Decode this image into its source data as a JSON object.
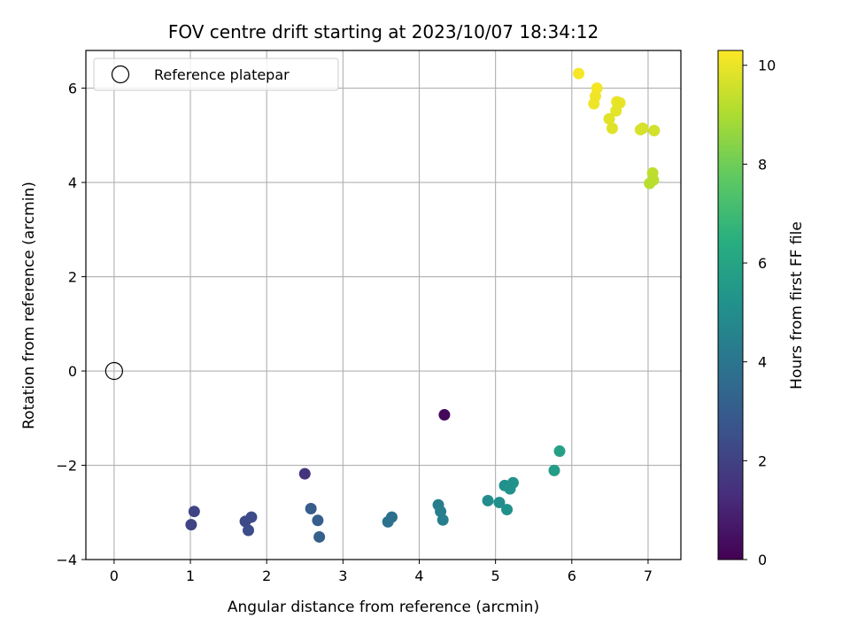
{
  "chart_data": {
    "type": "scatter",
    "title": "FOV centre drift starting at 2023/10/07 18:34:12",
    "xlabel": "Angular distance from reference (arcmin)",
    "ylabel": "Rotation from reference (arcmin)",
    "colorbar_label": "Hours from first FF file",
    "colormap": "viridis",
    "xlim": [
      -0.37,
      7.43
    ],
    "ylim": [
      -4.0,
      6.8
    ],
    "clim": [
      0,
      10.3
    ],
    "xticks": [
      "0",
      "1",
      "2",
      "3",
      "4",
      "5",
      "6",
      "7"
    ],
    "yticks": [
      "−4",
      "−2",
      "0",
      "2",
      "4",
      "6"
    ],
    "cticks": [
      "0",
      "2",
      "4",
      "6",
      "8",
      "10"
    ],
    "grid": true,
    "legend": {
      "position": "top-left",
      "entries": [
        "Reference platepar"
      ]
    },
    "reference": {
      "x": 0,
      "y": 0
    },
    "points": [
      {
        "x": 4.33,
        "y": -0.93,
        "c": 0.2
      },
      {
        "x": 2.5,
        "y": -2.18,
        "c": 1.5
      },
      {
        "x": 1.05,
        "y": -2.98,
        "c": 2.1
      },
      {
        "x": 1.01,
        "y": -3.26,
        "c": 2.1
      },
      {
        "x": 1.72,
        "y": -3.19,
        "c": 2.3
      },
      {
        "x": 1.8,
        "y": -3.1,
        "c": 2.35
      },
      {
        "x": 1.76,
        "y": -3.38,
        "c": 2.4
      },
      {
        "x": 2.58,
        "y": -2.92,
        "c": 3.0
      },
      {
        "x": 2.67,
        "y": -3.17,
        "c": 3.1
      },
      {
        "x": 2.69,
        "y": -3.52,
        "c": 3.15
      },
      {
        "x": 3.64,
        "y": -3.1,
        "c": 3.8
      },
      {
        "x": 3.59,
        "y": -3.2,
        "c": 3.85
      },
      {
        "x": 4.25,
        "y": -2.84,
        "c": 4.3
      },
      {
        "x": 4.28,
        "y": -2.98,
        "c": 4.35
      },
      {
        "x": 4.31,
        "y": -3.16,
        "c": 4.4
      },
      {
        "x": 4.9,
        "y": -2.75,
        "c": 5.0
      },
      {
        "x": 5.05,
        "y": -2.79,
        "c": 5.05
      },
      {
        "x": 5.12,
        "y": -2.43,
        "c": 5.1
      },
      {
        "x": 5.15,
        "y": -2.94,
        "c": 5.15
      },
      {
        "x": 5.19,
        "y": -2.5,
        "c": 5.2
      },
      {
        "x": 5.23,
        "y": -2.37,
        "c": 5.25
      },
      {
        "x": 5.77,
        "y": -2.11,
        "c": 5.7
      },
      {
        "x": 5.84,
        "y": -1.7,
        "c": 5.8
      },
      {
        "x": 6.09,
        "y": 6.31,
        "c": 10.2
      },
      {
        "x": 6.33,
        "y": 6.0,
        "c": 10.15
      },
      {
        "x": 6.31,
        "y": 5.83,
        "c": 10.1
      },
      {
        "x": 6.29,
        "y": 5.67,
        "c": 10.05
      },
      {
        "x": 6.59,
        "y": 5.71,
        "c": 10.0
      },
      {
        "x": 6.63,
        "y": 5.69,
        "c": 9.95
      },
      {
        "x": 6.58,
        "y": 5.52,
        "c": 9.9
      },
      {
        "x": 6.49,
        "y": 5.35,
        "c": 9.85
      },
      {
        "x": 6.53,
        "y": 5.15,
        "c": 9.8
      },
      {
        "x": 6.9,
        "y": 5.12,
        "c": 9.7
      },
      {
        "x": 6.93,
        "y": 5.15,
        "c": 9.65
      },
      {
        "x": 7.08,
        "y": 5.1,
        "c": 9.6
      },
      {
        "x": 7.06,
        "y": 4.2,
        "c": 9.3
      },
      {
        "x": 7.07,
        "y": 4.05,
        "c": 9.25
      },
      {
        "x": 7.02,
        "y": 3.98,
        "c": 9.2
      }
    ]
  }
}
